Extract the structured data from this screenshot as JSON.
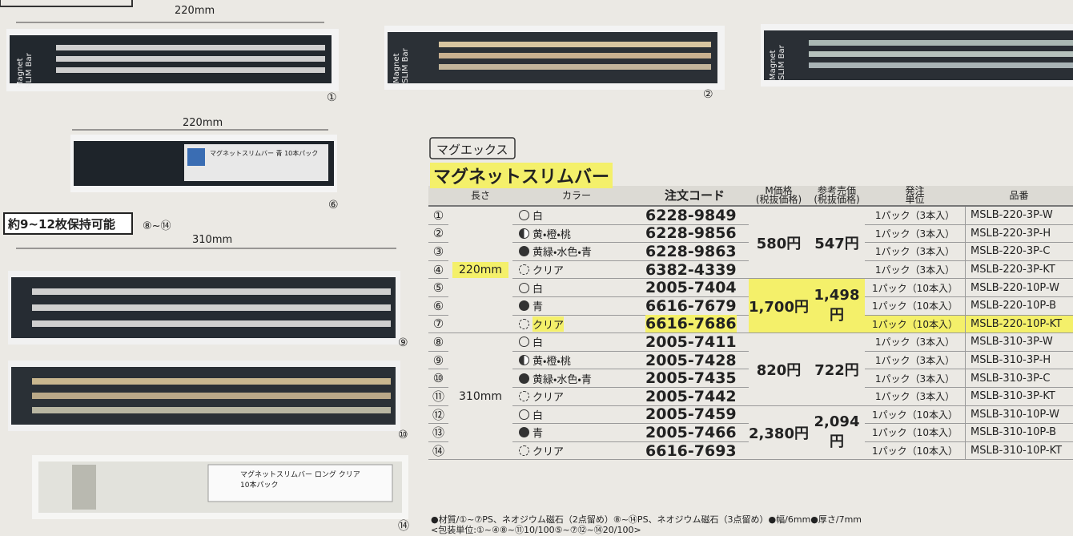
{
  "figures": [
    {
      "dimension": "220mm",
      "label": "Magnet SLIM Bar",
      "number": "①"
    },
    {
      "label": "Magnet SLIM Bar",
      "number": "②"
    },
    {
      "label": "Magnet SLIM Bar"
    },
    {
      "dimension": "220mm",
      "label": "マグネットスリムバー 青 10本パック",
      "number": "⑥"
    },
    {
      "dimension": "310mm",
      "number": "⑨"
    },
    {
      "number": "⑩"
    },
    {
      "label": "マグネットスリムバー ロング クリア 10本パック",
      "number": "⑭"
    }
  ],
  "capacity_note": {
    "text": "約9~12枚保持可能",
    "range": "⑧~⑭"
  },
  "brand": "マグエックス",
  "title": "マグネットスリムバー",
  "table": {
    "headers": [
      "長さ",
      "カラー",
      "注文コード",
      "M価格\n(税抜価格)",
      "参考売価\n(税抜価格)",
      "発注\n単位",
      "品番"
    ],
    "groups": [
      {
        "length": "220mm",
        "price_groups": [
          {
            "m_price": "580円",
            "ref_price": "547円",
            "items": [
              {
                "no": "①",
                "color": "白",
                "code": "6228-9849",
                "unit": "1パック（3本入）",
                "part": "MSLB-220-3P-W"
              },
              {
                "no": "②",
                "color": "黄・橙・桃",
                "code": "6228-9856",
                "unit": "1パック（3本入）",
                "part": "MSLB-220-3P-H"
              },
              {
                "no": "③",
                "color": "黄緑・水色・青",
                "code": "6228-9863",
                "unit": "1パック（3本入）",
                "part": "MSLB-220-3P-C"
              },
              {
                "no": "④",
                "color": "クリア",
                "code": "6382-4339",
                "unit": "1パック（3本入）",
                "part": "MSLB-220-3P-KT"
              }
            ]
          },
          {
            "m_price": "1,700円",
            "ref_price": "1,498円",
            "items": [
              {
                "no": "⑤",
                "color": "白",
                "code": "2005-7404",
                "unit": "1パック（10本入）",
                "part": "MSLB-220-10P-W"
              },
              {
                "no": "⑥",
                "color": "青",
                "code": "6616-7679",
                "unit": "1パック（10本入）",
                "part": "MSLB-220-10P-B"
              },
              {
                "no": "⑦",
                "color": "クリア",
                "code": "6616-7686",
                "unit": "1パック（10本入）",
                "part": "MSLB-220-10P-KT"
              }
            ]
          }
        ]
      },
      {
        "length": "310mm",
        "price_groups": [
          {
            "m_price": "820円",
            "ref_price": "722円",
            "items": [
              {
                "no": "⑧",
                "color": "白",
                "code": "2005-7411",
                "unit": "1パック（3本入）",
                "part": "MSLB-310-3P-W"
              },
              {
                "no": "⑨",
                "color": "黄・橙・桃",
                "code": "2005-7428",
                "unit": "1パック（3本入）",
                "part": "MSLB-310-3P-H"
              },
              {
                "no": "⑩",
                "color": "黄緑・水色・青",
                "code": "2005-7435",
                "unit": "1パック（3本入）",
                "part": "MSLB-310-3P-C"
              },
              {
                "no": "⑪",
                "color": "クリア",
                "code": "2005-7442",
                "unit": "1パック（3本入）",
                "part": "MSLB-310-3P-KT"
              }
            ]
          },
          {
            "m_price": "2,380円",
            "ref_price": "2,094円",
            "items": [
              {
                "no": "⑫",
                "color": "白",
                "code": "2005-7459",
                "unit": "1パック（10本入）",
                "part": "MSLB-310-10P-W"
              },
              {
                "no": "⑬",
                "color": "青",
                "code": "2005-7466",
                "unit": "1パック（10本入）",
                "part": "MSLB-310-10P-B"
              },
              {
                "no": "⑭",
                "color": "クリア",
                "code": "6616-7693",
                "unit": "1パック（10本入）",
                "part": "MSLB-310-10P-KT"
              }
            ]
          }
        ]
      }
    ]
  },
  "notes": [
    "●材質/①~⑦PS、ネオジウム磁石（2点留め）⑧~⑭PS、ネオジウム磁石（3点留め）●幅/6mm●厚さ/7mm",
    "<包装単位:①~④⑧~⑪10/100⑤~⑦⑫~⑭20/100>"
  ]
}
